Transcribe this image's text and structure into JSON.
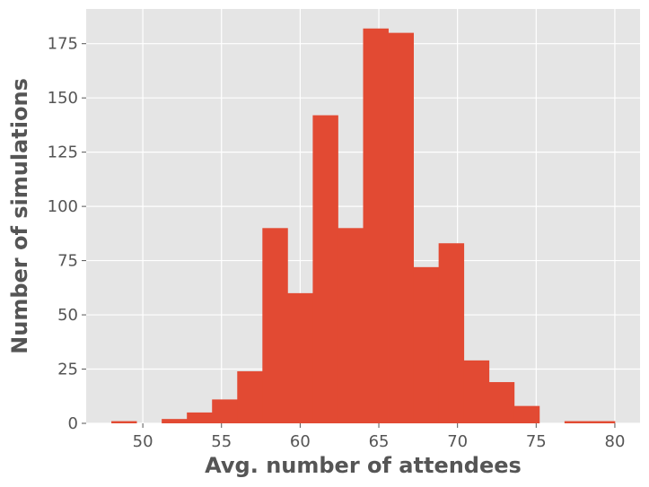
{
  "chart_data": {
    "type": "bar",
    "title": "",
    "xlabel": "Avg. number of attendees",
    "ylabel": "Number of simulations",
    "xlim": [
      46.4,
      81.6
    ],
    "ylim": [
      0,
      191
    ],
    "xticks": [
      50,
      55,
      60,
      65,
      70,
      75,
      80
    ],
    "yticks": [
      0,
      25,
      50,
      75,
      100,
      125,
      150,
      175
    ],
    "grid": true,
    "bar_color": "#E24A33",
    "background_color": "#E5E5E5",
    "bins": [
      {
        "x0": 48.0,
        "x1": 49.6,
        "value": 1
      },
      {
        "x0": 49.6,
        "x1": 51.2,
        "value": 0
      },
      {
        "x0": 51.2,
        "x1": 52.8,
        "value": 2
      },
      {
        "x0": 52.8,
        "x1": 54.4,
        "value": 5
      },
      {
        "x0": 54.4,
        "x1": 56.0,
        "value": 11
      },
      {
        "x0": 56.0,
        "x1": 57.6,
        "value": 24
      },
      {
        "x0": 57.6,
        "x1": 59.2,
        "value": 90
      },
      {
        "x0": 59.2,
        "x1": 60.8,
        "value": 60
      },
      {
        "x0": 60.8,
        "x1": 62.4,
        "value": 142
      },
      {
        "x0": 62.4,
        "x1": 64.0,
        "value": 90
      },
      {
        "x0": 64.0,
        "x1": 65.6,
        "value": 182
      },
      {
        "x0": 65.6,
        "x1": 67.2,
        "value": 180
      },
      {
        "x0": 67.2,
        "x1": 68.8,
        "value": 72
      },
      {
        "x0": 68.8,
        "x1": 70.4,
        "value": 83
      },
      {
        "x0": 70.4,
        "x1": 72.0,
        "value": 29
      },
      {
        "x0": 72.0,
        "x1": 73.6,
        "value": 19
      },
      {
        "x0": 73.6,
        "x1": 75.2,
        "value": 8
      },
      {
        "x0": 75.2,
        "x1": 76.8,
        "value": 0
      },
      {
        "x0": 76.8,
        "x1": 78.4,
        "value": 1
      },
      {
        "x0": 78.4,
        "x1": 80.0,
        "value": 1
      }
    ]
  }
}
